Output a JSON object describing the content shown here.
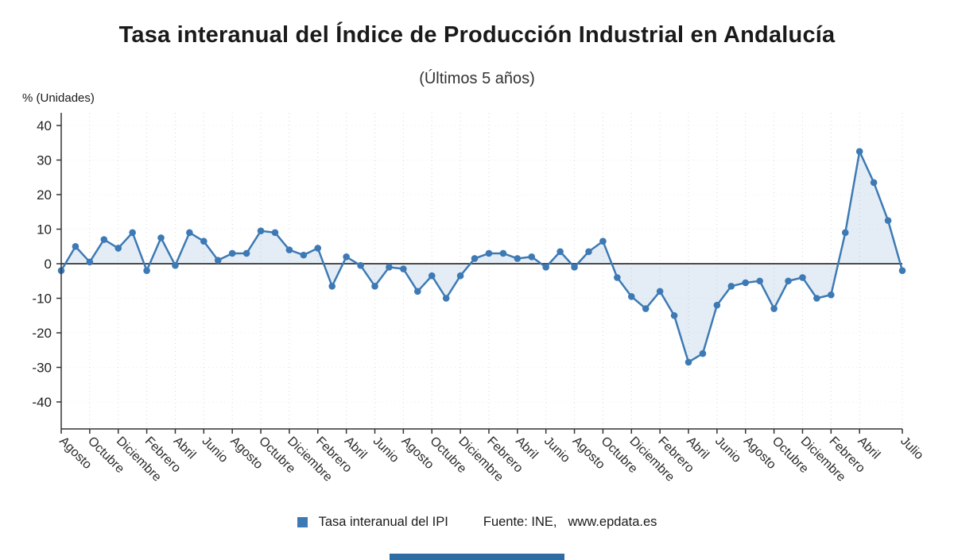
{
  "header": {
    "title": "Tasa interanual del Índice de Producción Industrial en Andalucía",
    "subtitle": "(Últimos 5 años)"
  },
  "axis": {
    "unit_label": "% (Unidades)"
  },
  "legend": {
    "series_label": "Tasa interanual del IPI",
    "source_prefix": "Fuente: INE, ",
    "source_link": "www.epdata.es"
  },
  "colors": {
    "line": "#3d7ab5",
    "marker": "#3d7ab5",
    "area_fill": "rgba(90,140,190,0.16)",
    "zero_line": "#4a4a4a",
    "axis_line": "#333333",
    "grid_line": "#d8d8d8",
    "tick_label": "#222222"
  },
  "chart_data": {
    "type": "line",
    "title": "Tasa interanual del Índice de Producción Industrial en Andalucía",
    "subtitle": "(Últimos 5 años)",
    "ylabel": "% (Unidades)",
    "xlabel": "",
    "ylim": [
      -47,
      44
    ],
    "y_ticks": [
      40,
      30,
      20,
      10,
      0,
      -10,
      -20,
      -30,
      -40
    ],
    "grid": "dotted-vertical",
    "legend_position": "bottom",
    "series_name": "Tasa interanual del IPI",
    "x_tick_positions": [
      0,
      2,
      4,
      6,
      8,
      10,
      12,
      14,
      16,
      18,
      20,
      22,
      24,
      26,
      28,
      30,
      32,
      34,
      36,
      38,
      40,
      42,
      44,
      46,
      48,
      50,
      52,
      54,
      56,
      59
    ],
    "x_tick_labels": [
      "Agosto",
      "Octubre",
      "Diciembre",
      "Febrero",
      "Abril",
      "Junio",
      "Agosto",
      "Octubre",
      "Diciembre",
      "Febrero",
      "Abril",
      "Junio",
      "Agosto",
      "Octubre",
      "Diciembre",
      "Febrero",
      "Abril",
      "Junio",
      "Agosto",
      "Octubre",
      "Diciembre",
      "Febrero",
      "Abril",
      "Junio",
      "Agosto",
      "Octubre",
      "Diciembre",
      "Febrero",
      "Abril",
      "Julio"
    ],
    "values": [
      -2.0,
      5.0,
      0.5,
      7.0,
      4.5,
      9.0,
      -2.0,
      7.5,
      -0.5,
      9.0,
      6.5,
      1.0,
      3.0,
      3.0,
      9.5,
      9.0,
      4.0,
      2.5,
      4.5,
      -6.5,
      2.0,
      -0.5,
      -6.5,
      -1.0,
      -1.5,
      -8.0,
      -3.5,
      -10.0,
      -3.5,
      1.5,
      3.0,
      3.0,
      1.5,
      2.0,
      -1.0,
      3.5,
      -1.0,
      3.5,
      6.5,
      -4.0,
      -9.5,
      -13.0,
      -8.0,
      -15.0,
      -28.5,
      -26.0,
      -12.0,
      -6.5,
      -5.5,
      -5.0,
      -13.0,
      -5.0,
      -4.0,
      -10.0,
      -9.0,
      9.0,
      32.5,
      23.5,
      12.5,
      -2.0
    ]
  }
}
